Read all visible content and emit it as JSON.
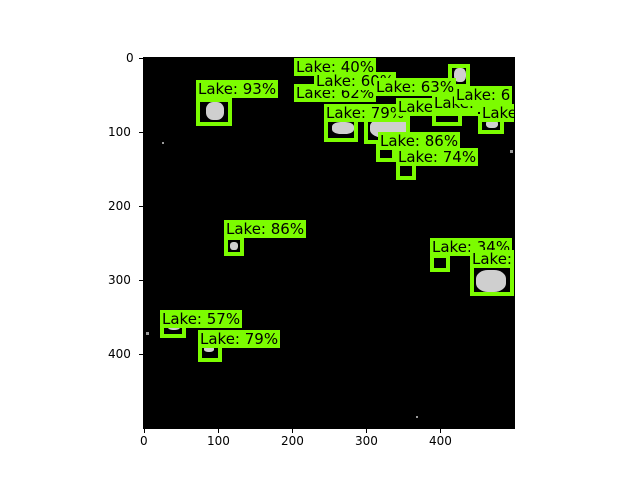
{
  "figure": {
    "x_ticks": [
      "0",
      "100",
      "200",
      "300",
      "400"
    ],
    "y_ticks": [
      "0",
      "100",
      "200",
      "300",
      "400"
    ]
  },
  "detections": [
    {
      "label": "Lake: 93%"
    },
    {
      "label": "Lake: 40%"
    },
    {
      "label": "Lake: 62%"
    },
    {
      "label": "Lake: 60%"
    },
    {
      "label": "Lake: 63%"
    },
    {
      "label": "Lake: 79%"
    },
    {
      "label": "Lake: 91%"
    },
    {
      "label": "Lake: 6"
    },
    {
      "label": "Lake: 6"
    },
    {
      "label": "Lake"
    },
    {
      "label": "Lake: 86%"
    },
    {
      "label": "Lake: 74%"
    },
    {
      "label": "Lake: 86%"
    },
    {
      "label": "Lake: 34%"
    },
    {
      "label": "Lake:"
    },
    {
      "label": "Lake: 57%"
    },
    {
      "label": "Lake: 79%"
    }
  ]
}
